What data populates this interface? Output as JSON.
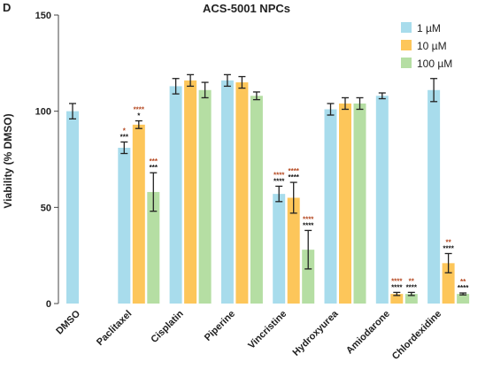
{
  "panel_label": "D",
  "chart_data": {
    "type": "bar",
    "title": "ACS-5001 NPCs",
    "xlabel": "",
    "ylabel": "Viability (% DMSO)",
    "ylim": [
      0,
      150
    ],
    "yticks": [
      0,
      50,
      100,
      150
    ],
    "grid": false,
    "legend_position": "top-right",
    "categories": [
      "DMSO",
      "Paclitaxel",
      "Cisplatin",
      "Piperine",
      "Vincristine",
      "Hydroxyurea",
      "Amiodarone",
      "Chlordexidine"
    ],
    "series": [
      {
        "name": "1 µM",
        "color": "#a8dcec",
        "values": [
          100,
          81,
          113,
          116,
          57,
          101,
          108,
          111
        ],
        "errors": [
          4,
          3,
          4,
          3,
          4,
          3,
          1.5,
          6
        ],
        "sig_red": [
          "",
          "*",
          "",
          "",
          "****",
          "",
          "",
          ""
        ],
        "sig_black": [
          "",
          "***",
          "",
          "",
          "****",
          "",
          "",
          ""
        ]
      },
      {
        "name": "10 µM",
        "color": "#fdc65a",
        "values": [
          null,
          93,
          116,
          115,
          55,
          104,
          5,
          21
        ],
        "errors": [
          0,
          2,
          3,
          3,
          8,
          3,
          0.8,
          5
        ],
        "sig_red": [
          "",
          "****",
          "",
          "",
          "****",
          "",
          "****",
          "**"
        ],
        "sig_black": [
          "",
          "*",
          "",
          "",
          "****",
          "",
          "****",
          "****"
        ]
      },
      {
        "name": "100 µM",
        "color": "#b5dea3",
        "values": [
          null,
          58,
          111,
          108,
          28,
          104,
          5,
          5
        ],
        "errors": [
          0,
          10,
          4,
          2,
          10,
          3,
          0.8,
          0.5
        ],
        "sig_red": [
          "",
          "***",
          "",
          "",
          "****",
          "",
          "**",
          "**"
        ],
        "sig_black": [
          "",
          "***",
          "",
          "",
          "****",
          "",
          "****",
          "****"
        ]
      }
    ]
  },
  "colors": {
    "sig_red": "#b4461e",
    "sig_black": "#111111",
    "axis": "#444444",
    "errorbar": "#222222"
  }
}
